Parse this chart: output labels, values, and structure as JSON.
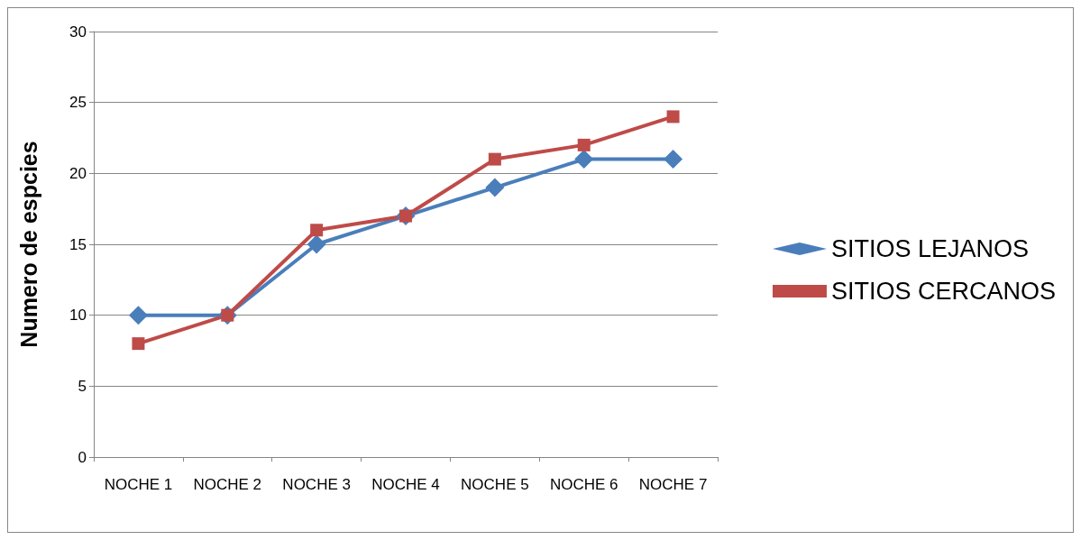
{
  "chart_data": {
    "type": "line",
    "ylabel": "Numero de espcies",
    "categories": [
      "NOCHE 1",
      "NOCHE 2",
      "NOCHE 3",
      "NOCHE 4",
      "NOCHE 5",
      "NOCHE 6",
      "NOCHE 7"
    ],
    "series": [
      {
        "name": "SITIOS LEJANOS",
        "color": "#4a7ebb",
        "marker": "diamond",
        "values": [
          10,
          10,
          15,
          17,
          19,
          21,
          21
        ]
      },
      {
        "name": "SITIOS CERCANOS",
        "color": "#be4b48",
        "marker": "square",
        "values": [
          8,
          10,
          16,
          17,
          21,
          22,
          24
        ]
      }
    ],
    "ylim": [
      0,
      30
    ],
    "yticks": [
      0,
      5,
      10,
      15,
      20,
      25,
      30
    ],
    "grid": "y",
    "legend": "right"
  }
}
